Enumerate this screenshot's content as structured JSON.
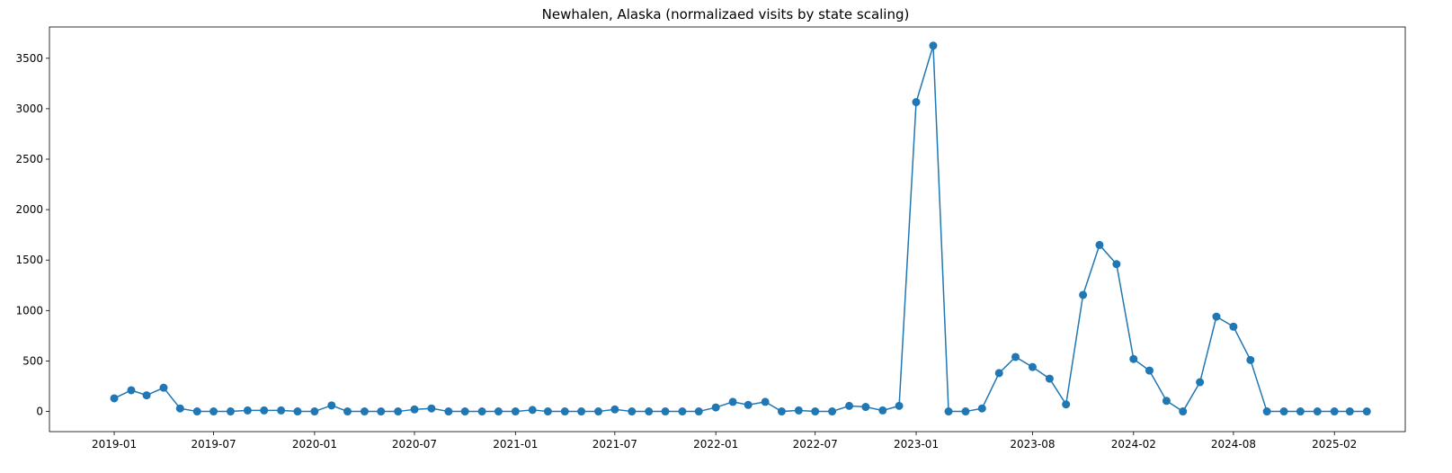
{
  "chart_data": {
    "type": "line",
    "title": "Newhalen, Alaska (normalizaed visits by state scaling)",
    "xlabel": "",
    "ylabel": "",
    "x_tick_labels": [
      "2019-01",
      "2019-07",
      "2020-01",
      "2020-07",
      "2021-01",
      "2021-07",
      "2022-01",
      "2022-07",
      "2023-01",
      "2023-08",
      "2024-02",
      "2024-08",
      "2025-02"
    ],
    "x_tick_dates": [
      "2019-01-01",
      "2019-07-01",
      "2020-01-01",
      "2020-07-01",
      "2021-01-01",
      "2021-07-01",
      "2022-01-01",
      "2022-07-01",
      "2023-01-01",
      "2023-08-01",
      "2024-02-01",
      "2024-08-01",
      "2025-02-01"
    ],
    "y_ticks": [
      0,
      500,
      1000,
      1500,
      2000,
      2500,
      3000,
      3500
    ],
    "xlim": [
      "2018-09-05",
      "2025-06-10"
    ],
    "ylim": [
      -200,
      3810
    ],
    "grid": false,
    "marker": "circle",
    "color": "#1f77b4",
    "x": [
      "2019-01-01",
      "2019-02-01",
      "2019-03-01",
      "2019-04-01",
      "2019-05-01",
      "2019-06-01",
      "2019-07-01",
      "2019-08-01",
      "2019-09-01",
      "2019-10-01",
      "2019-11-01",
      "2019-12-01",
      "2020-01-01",
      "2020-02-01",
      "2020-03-01",
      "2020-04-01",
      "2020-05-01",
      "2020-06-01",
      "2020-07-01",
      "2020-08-01",
      "2020-09-01",
      "2020-10-01",
      "2020-11-01",
      "2020-12-01",
      "2021-01-01",
      "2021-02-01",
      "2021-03-01",
      "2021-04-01",
      "2021-05-01",
      "2021-06-01",
      "2021-07-01",
      "2021-08-01",
      "2021-09-01",
      "2021-10-01",
      "2021-11-01",
      "2021-12-01",
      "2022-01-01",
      "2022-02-01",
      "2022-03-01",
      "2022-04-01",
      "2022-05-01",
      "2022-06-01",
      "2022-07-01",
      "2022-08-01",
      "2022-09-01",
      "2022-10-01",
      "2022-11-01",
      "2022-12-01",
      "2023-01-01",
      "2023-02-01",
      "2023-03-01",
      "2023-04-01",
      "2023-05-01",
      "2023-06-01",
      "2023-07-01",
      "2023-08-01",
      "2023-09-01",
      "2023-10-01",
      "2023-11-01",
      "2023-12-01",
      "2024-01-01",
      "2024-02-01",
      "2024-03-01",
      "2024-04-01",
      "2024-05-01",
      "2024-06-01",
      "2024-07-01",
      "2024-08-01",
      "2024-09-01",
      "2024-10-01",
      "2024-11-01",
      "2024-12-01",
      "2025-01-01",
      "2025-02-01",
      "2025-03-01",
      "2025-04-01"
    ],
    "y": [
      130,
      210,
      160,
      235,
      30,
      0,
      0,
      0,
      10,
      10,
      10,
      0,
      0,
      60,
      0,
      0,
      0,
      0,
      20,
      30,
      0,
      0,
      0,
      0,
      0,
      15,
      0,
      0,
      0,
      0,
      20,
      0,
      0,
      0,
      0,
      0,
      40,
      95,
      65,
      95,
      0,
      10,
      0,
      0,
      55,
      45,
      10,
      55,
      3065,
      3625,
      0,
      0,
      30,
      380,
      540,
      440,
      325,
      70,
      1155,
      1650,
      1460,
      520,
      405,
      105,
      0,
      290,
      940,
      840,
      510,
      0,
      0,
      0,
      0,
      0,
      0,
      0
    ]
  }
}
